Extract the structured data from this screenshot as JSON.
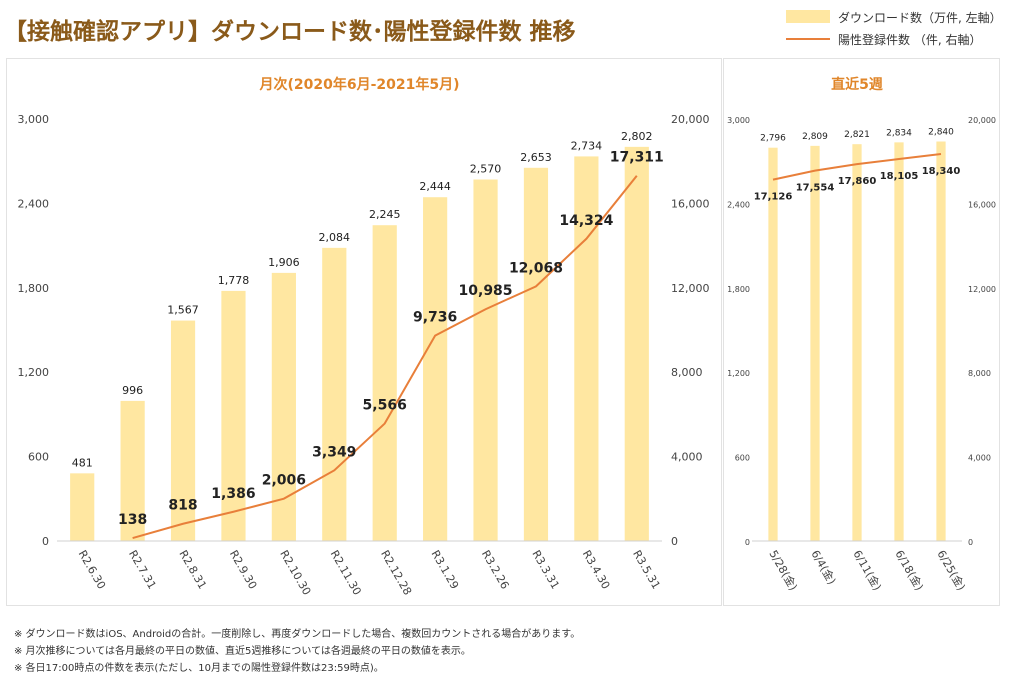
{
  "title": "【接触確認アプリ】ダウンロード数･陽性登録件数 推移",
  "legend": {
    "bar_label": "ダウンロード数（万件, 左軸）",
    "line_label": "陽性登録件数 （件, 右軸）"
  },
  "colors": {
    "bar": "#ffe7a1",
    "line": "#e87f3a",
    "panel_title": "#e0862a",
    "grid": "#e6e6e6"
  },
  "chart_data": [
    {
      "type": "bar",
      "title": "月次(2020年6月-2021年5月)",
      "categories": [
        "R2.6.30",
        "R2.7.31",
        "R2.8.31",
        "R2.9.30",
        "R2.10.30",
        "R2.11.30",
        "R2.12.28",
        "R3.1.29",
        "R3.2.26",
        "R3.3.31",
        "R3.4.30",
        "R3.5.31"
      ],
      "series": [
        {
          "name": "ダウンロード数（万件, 左軸）",
          "type": "bar",
          "axis": "left",
          "values": [
            481,
            996,
            1567,
            1778,
            1906,
            2084,
            2245,
            2444,
            2570,
            2653,
            2734,
            2802
          ],
          "labels": [
            "481",
            "996",
            "1,567",
            "1,778",
            "1,906",
            "2,084",
            "2,245",
            "2,444",
            "2,570",
            "2,653",
            "2,734",
            "2,802"
          ]
        },
        {
          "name": "陽性登録件数 （件, 右軸）",
          "type": "line",
          "axis": "right",
          "values": [
            null,
            138,
            818,
            1386,
            2006,
            3349,
            5566,
            9736,
            10985,
            12068,
            14324,
            17311
          ],
          "labels": [
            "",
            "138",
            "818",
            "1,386",
            "2,006",
            "3,349",
            "5,566",
            "9,736",
            "10,985",
            "12,068",
            "14,324",
            "17,311"
          ]
        }
      ],
      "y_left": {
        "min": 0,
        "max": 3000,
        "ticks": [
          "0",
          "600",
          "1,200",
          "1,800",
          "2,400",
          "3,000"
        ]
      },
      "y_right": {
        "min": 0,
        "max": 20000,
        "ticks": [
          "0",
          "4,000",
          "8,000",
          "12,000",
          "16,000",
          "20,000"
        ]
      },
      "grid": false,
      "legend": "top-right"
    },
    {
      "type": "bar",
      "title": "直近5週",
      "categories": [
        "5/28(金)",
        "6/4(金)",
        "6/11(金)",
        "6/18(金)",
        "6/25(金)"
      ],
      "series": [
        {
          "name": "ダウンロード数（万件, 左軸）",
          "type": "bar",
          "axis": "left",
          "values": [
            2796,
            2809,
            2821,
            2834,
            2840
          ],
          "labels": [
            "2,796",
            "2,809",
            "2,821",
            "2,834",
            "2,840"
          ]
        },
        {
          "name": "陽性登録件数 （件, 右軸）",
          "type": "line",
          "axis": "right",
          "values": [
            17126,
            17554,
            17860,
            18105,
            18340
          ],
          "labels": [
            "17,126",
            "17,554",
            "17,860",
            "18,105",
            "18,340"
          ]
        }
      ],
      "y_left": {
        "min": 0,
        "max": 3000,
        "ticks": [
          "0",
          "600",
          "1,200",
          "1,800",
          "2,400",
          "3,000"
        ]
      },
      "y_right": {
        "min": 0,
        "max": 20000,
        "ticks": [
          "0",
          "4,000",
          "8,000",
          "12,000",
          "16,000",
          "20,000"
        ]
      },
      "grid": false
    }
  ],
  "notes": [
    "※ ダウンロード数はiOS、Androidの合計。一度削除し、再度ダウンロードした場合、複数回カウントされる場合があります。",
    "※ 月次推移については各月最終の平日の数値、直近5週推移については各週最終の平日の数値を表示。",
    "※ 各日17:00時点の件数を表示(ただし、10月までの陽性登録件数は23:59時点)。"
  ]
}
